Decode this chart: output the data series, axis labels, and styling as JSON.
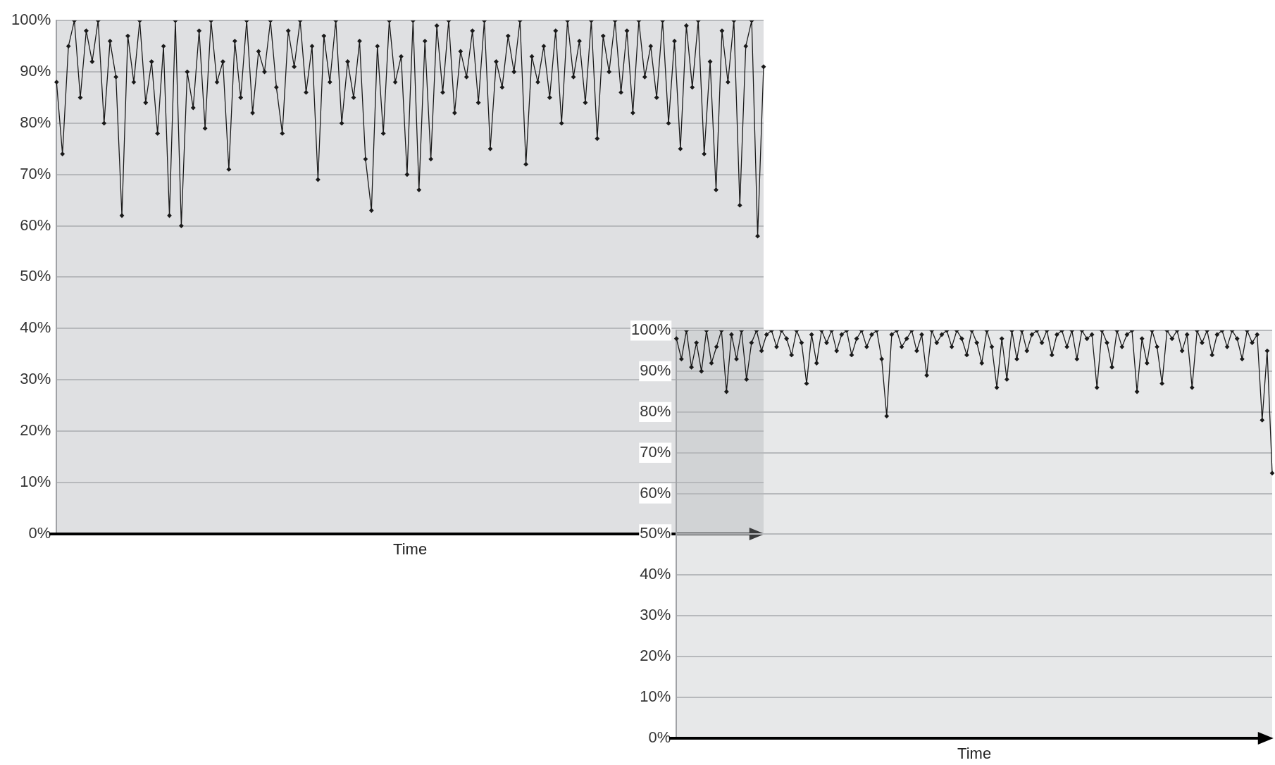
{
  "chart_data": [
    {
      "type": "line",
      "xlabel": "Time",
      "color": "#1a1a1a",
      "ylim": [
        0,
        100
      ],
      "yticks": [
        {
          "value": 0,
          "label": "0%"
        },
        {
          "value": 10,
          "label": "10%"
        },
        {
          "value": 20,
          "label": "20%"
        },
        {
          "value": 30,
          "label": "30%"
        },
        {
          "value": 40,
          "label": "40%"
        },
        {
          "value": 50,
          "label": "50%"
        },
        {
          "value": 60,
          "label": "60%"
        },
        {
          "value": 70,
          "label": "70%"
        },
        {
          "value": 80,
          "label": "80%"
        },
        {
          "value": 90,
          "label": "90%"
        },
        {
          "value": 100,
          "label": "100%"
        }
      ],
      "grid": "y",
      "marker": "diamond",
      "tick_labels": "y",
      "categories": [
        null,
        null,
        null,
        null,
        null,
        null,
        null,
        null,
        null,
        null,
        null,
        null,
        null,
        null,
        null,
        null,
        null,
        null,
        null,
        null,
        null,
        null,
        null,
        null,
        null,
        null,
        null,
        null,
        null,
        null,
        null,
        null,
        null,
        null,
        null,
        null,
        null,
        null,
        null,
        null,
        null,
        null,
        null,
        null,
        null,
        null,
        null,
        null,
        null,
        null,
        null,
        null,
        null,
        null,
        null,
        null,
        null,
        null,
        null,
        null,
        null,
        null,
        null,
        null,
        null,
        null,
        null,
        null,
        null,
        null,
        null,
        null,
        null,
        null,
        null,
        null,
        null,
        null,
        null,
        null,
        null,
        null,
        null,
        null,
        null,
        null,
        null,
        null,
        null,
        null,
        null,
        null,
        null,
        null,
        null,
        null,
        null,
        null,
        null,
        null,
        null,
        null,
        null,
        null,
        null,
        null,
        null,
        null,
        null,
        null,
        null,
        null,
        null,
        null,
        null,
        null,
        null,
        null,
        null,
        null
      ],
      "values": [
        88,
        74,
        95,
        100,
        85,
        98,
        92,
        100,
        80,
        96,
        89,
        62,
        97,
        88,
        100,
        84,
        92,
        78,
        95,
        62,
        100,
        60,
        90,
        83,
        98,
        79,
        100,
        88,
        92,
        71,
        96,
        85,
        100,
        82,
        94,
        90,
        100,
        87,
        78,
        98,
        91,
        100,
        86,
        95,
        69,
        97,
        88,
        100,
        80,
        92,
        85,
        96,
        73,
        63,
        95,
        78,
        100,
        88,
        93,
        70,
        100,
        67,
        96,
        73,
        99,
        86,
        100,
        82,
        94,
        89,
        98,
        84,
        100,
        75,
        92,
        87,
        97,
        90,
        100,
        72,
        93,
        88,
        95,
        85,
        98,
        80,
        100,
        89,
        96,
        84,
        100,
        77,
        97,
        90,
        100,
        86,
        98,
        82,
        100,
        89,
        95,
        85,
        100,
        80,
        96,
        75,
        99,
        87,
        100,
        74,
        92,
        67,
        98,
        88,
        100,
        64,
        95,
        100,
        58,
        91
      ]
    },
    {
      "type": "line",
      "xlabel": "Time",
      "color": "#1a1a1a",
      "ylim": [
        0,
        100
      ],
      "yticks": [
        {
          "value": 0,
          "label": "0%"
        },
        {
          "value": 10,
          "label": "10%"
        },
        {
          "value": 20,
          "label": "20%"
        },
        {
          "value": 30,
          "label": "30%"
        },
        {
          "value": 40,
          "label": "40%"
        },
        {
          "value": 50,
          "label": "50%"
        },
        {
          "value": 60,
          "label": "60%"
        },
        {
          "value": 70,
          "label": "70%"
        },
        {
          "value": 80,
          "label": "80%"
        },
        {
          "value": 90,
          "label": "90%"
        },
        {
          "value": 100,
          "label": "100%"
        }
      ],
      "grid": "y",
      "marker": "diamond",
      "tick_labels": "y",
      "categories": [
        null,
        null,
        null,
        null,
        null,
        null,
        null,
        null,
        null,
        null,
        null,
        null,
        null,
        null,
        null,
        null,
        null,
        null,
        null,
        null,
        null,
        null,
        null,
        null,
        null,
        null,
        null,
        null,
        null,
        null,
        null,
        null,
        null,
        null,
        null,
        null,
        null,
        null,
        null,
        null,
        null,
        null,
        null,
        null,
        null,
        null,
        null,
        null,
        null,
        null,
        null,
        null,
        null,
        null,
        null,
        null,
        null,
        null,
        null,
        null,
        null,
        null,
        null,
        null,
        null,
        null,
        null,
        null,
        null,
        null,
        null,
        null,
        null,
        null,
        null,
        null,
        null,
        null,
        null,
        null,
        null,
        null,
        null,
        null,
        null,
        null,
        null,
        null,
        null,
        null,
        null,
        null,
        null,
        null,
        null,
        null,
        null,
        null,
        null,
        null,
        null,
        null,
        null,
        null,
        null,
        null,
        null,
        null,
        null,
        null,
        null,
        null,
        null,
        null,
        null,
        null,
        null,
        null,
        null,
        null
      ],
      "values": [
        98,
        93,
        100,
        91,
        97,
        90,
        100,
        92,
        96,
        100,
        85,
        99,
        93,
        100,
        88,
        97,
        100,
        95,
        99,
        100,
        96,
        100,
        98,
        94,
        100,
        97,
        87,
        99,
        92,
        100,
        97,
        100,
        95,
        99,
        100,
        94,
        98,
        100,
        96,
        99,
        100,
        93,
        79,
        99,
        100,
        96,
        98,
        100,
        95,
        99,
        89,
        100,
        97,
        99,
        100,
        96,
        100,
        98,
        94,
        100,
        97,
        92,
        100,
        96,
        86,
        98,
        88,
        100,
        93,
        100,
        95,
        99,
        100,
        97,
        100,
        94,
        99,
        100,
        96,
        100,
        93,
        100,
        98,
        99,
        86,
        100,
        97,
        91,
        100,
        96,
        99,
        100,
        85,
        98,
        92,
        100,
        96,
        87,
        100,
        98,
        100,
        95,
        99,
        86,
        100,
        97,
        100,
        94,
        99,
        100,
        96,
        100,
        98,
        93,
        100,
        97,
        99,
        78,
        95,
        65
      ]
    }
  ]
}
